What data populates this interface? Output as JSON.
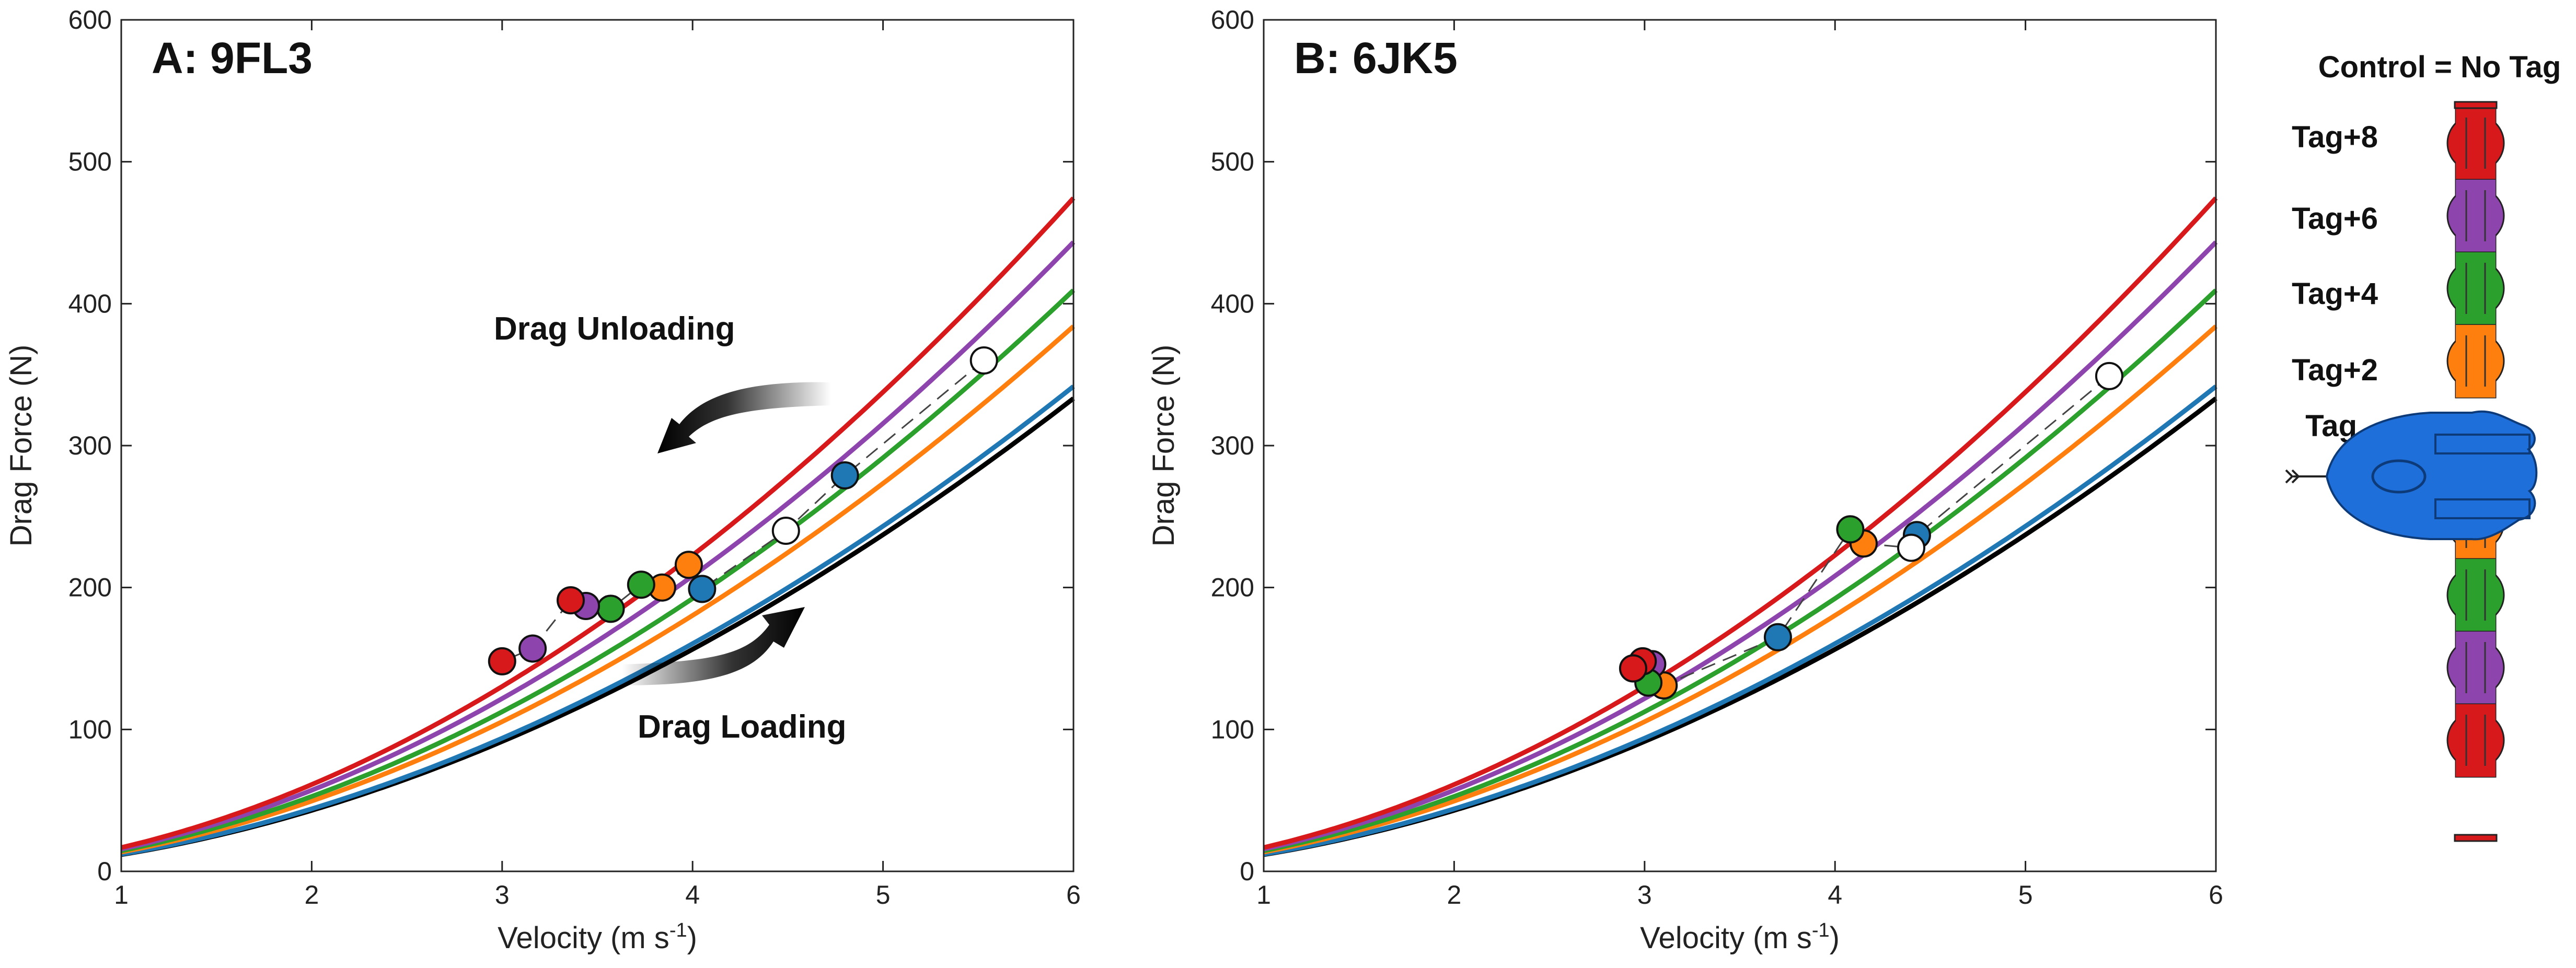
{
  "chart_data": [
    {
      "type": "line",
      "panel_id": "A",
      "title": "A: 9FL3",
      "xlabel": "Velocity (m s",
      "xlabel_sup": "-1",
      "xlabel_end": ")",
      "ylabel": "Drag Force (N)",
      "xlim": [
        1,
        6
      ],
      "ylim": [
        0,
        600
      ],
      "xticks": [
        1,
        2,
        3,
        4,
        5,
        6
      ],
      "yticks": [
        0,
        100,
        200,
        300,
        400,
        500,
        600
      ],
      "series": [
        {
          "name": "Tag+8",
          "color": "#d7191c",
          "k": 16.8
        },
        {
          "name": "Tag+6",
          "color": "#8e44ad",
          "k": 15.7
        },
        {
          "name": "Tag+4",
          "color": "#2ca02c",
          "k": 14.5
        },
        {
          "name": "Tag+2",
          "color": "#ff7f0e",
          "k": 13.6
        },
        {
          "name": "Tag",
          "color": "#1f77b4",
          "k": 12.1
        },
        {
          "name": "Control = No Tag",
          "color": "#000000",
          "k": 11.8
        }
      ],
      "points": [
        {
          "x": 5.53,
          "y": 360,
          "color": "open"
        },
        {
          "x": 4.8,
          "y": 279,
          "color": "#1f77b4"
        },
        {
          "x": 4.49,
          "y": 240,
          "color": "open"
        },
        {
          "x": 4.05,
          "y": 199,
          "color": "#1f77b4"
        },
        {
          "x": 3.98,
          "y": 216,
          "color": "#ff7f0e"
        },
        {
          "x": 3.84,
          "y": 200,
          "color": "#ff7f0e"
        },
        {
          "x": 3.73,
          "y": 202,
          "color": "#2ca02c"
        },
        {
          "x": 3.57,
          "y": 185,
          "color": "#2ca02c"
        },
        {
          "x": 3.44,
          "y": 187,
          "color": "#8e44ad"
        },
        {
          "x": 3.36,
          "y": 191,
          "color": "#d7191c"
        },
        {
          "x": 3.16,
          "y": 157,
          "color": "#8e44ad"
        },
        {
          "x": 3.0,
          "y": 148,
          "color": "#d7191c"
        }
      ],
      "annotations": {
        "unloading": "Drag Unloading",
        "loading": "Drag Loading"
      }
    },
    {
      "type": "line",
      "panel_id": "B",
      "title": "B: 6JK5",
      "xlabel": "Velocity (m s",
      "xlabel_sup": "-1",
      "xlabel_end": ")",
      "ylabel": "Drag Force (N)",
      "xlim": [
        1,
        6
      ],
      "ylim": [
        0,
        600
      ],
      "xticks": [
        1,
        2,
        3,
        4,
        5,
        6
      ],
      "yticks": [
        0,
        100,
        200,
        300,
        400,
        500,
        600
      ],
      "series": [
        {
          "name": "Tag+8",
          "color": "#d7191c",
          "k": 16.8
        },
        {
          "name": "Tag+6",
          "color": "#8e44ad",
          "k": 15.7
        },
        {
          "name": "Tag+4",
          "color": "#2ca02c",
          "k": 14.5
        },
        {
          "name": "Tag+2",
          "color": "#ff7f0e",
          "k": 13.6
        },
        {
          "name": "Tag",
          "color": "#1f77b4",
          "k": 12.1
        },
        {
          "name": "Control = No Tag",
          "color": "#000000",
          "k": 11.8
        }
      ],
      "points": [
        {
          "x": 5.44,
          "y": 349,
          "color": "open"
        },
        {
          "x": 4.43,
          "y": 237,
          "color": "#1f77b4"
        },
        {
          "x": 4.4,
          "y": 228,
          "color": "open"
        },
        {
          "x": 4.15,
          "y": 231,
          "color": "#ff7f0e"
        },
        {
          "x": 4.08,
          "y": 241,
          "color": "#2ca02c"
        },
        {
          "x": 3.7,
          "y": 165,
          "color": "#1f77b4"
        },
        {
          "x": 3.1,
          "y": 131,
          "color": "#ff7f0e"
        },
        {
          "x": 3.04,
          "y": 146,
          "color": "#8e44ad"
        },
        {
          "x": 3.02,
          "y": 133,
          "color": "#2ca02c"
        },
        {
          "x": 2.99,
          "y": 148,
          "color": "#d7191c"
        },
        {
          "x": 2.94,
          "y": 143,
          "color": "#d7191c"
        }
      ]
    }
  ],
  "legend": {
    "title": "Control = No Tag",
    "items": [
      "Tag+8",
      "Tag+6",
      "Tag+4",
      "Tag+2",
      "Tag"
    ],
    "segment_colors": [
      "#d7191c",
      "#8e44ad",
      "#2ca02c",
      "#ff7f0e",
      "#ff7f0e",
      "#2ca02c",
      "#8e44ad",
      "#d7191c"
    ],
    "tag_color": "#1e6fd9"
  }
}
